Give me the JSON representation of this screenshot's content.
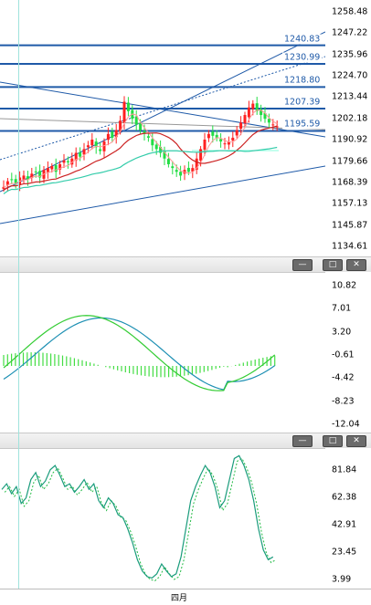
{
  "main_chart": {
    "price_ticks": [
      "1258.48",
      "1247.22",
      "1235.96",
      "1224.70",
      "1213.44",
      "1202.18",
      "1190.92",
      "1179.66",
      "1168.39",
      "1157.13",
      "1145.87",
      "1134.61"
    ],
    "level_lines": [
      "1240.83",
      "1230.99",
      "1218.80",
      "1207.39",
      "1195.59"
    ],
    "colors": {
      "up_candle": "#ff2020",
      "down_candle": "#22dd44",
      "level_line": "#1f5aa8",
      "ma_fast": "#ff9999",
      "ma_mid": "#cc2222",
      "ma_slow": "#33ccaa"
    }
  },
  "macd_panel": {
    "ticks": [
      "10.82",
      "7.01",
      "3.20",
      "-0.61",
      "-4.42",
      "-8.23",
      "-12.04"
    ],
    "colors": {
      "line1": "#1c8fb3",
      "line2": "#33cc33",
      "histogram": "#44dd44"
    }
  },
  "stoch_panel": {
    "ticks": [
      "81.84",
      "62.38",
      "42.91",
      "23.45",
      "3.99"
    ],
    "colors": {
      "main": "#1a9c7c",
      "signal": "#22bb44"
    }
  },
  "window_buttons": {
    "minimize": "—",
    "restore": "□",
    "close": "✕"
  },
  "time_axis": {
    "label": "四月"
  },
  "cursor_color": "#7fd8d0"
}
